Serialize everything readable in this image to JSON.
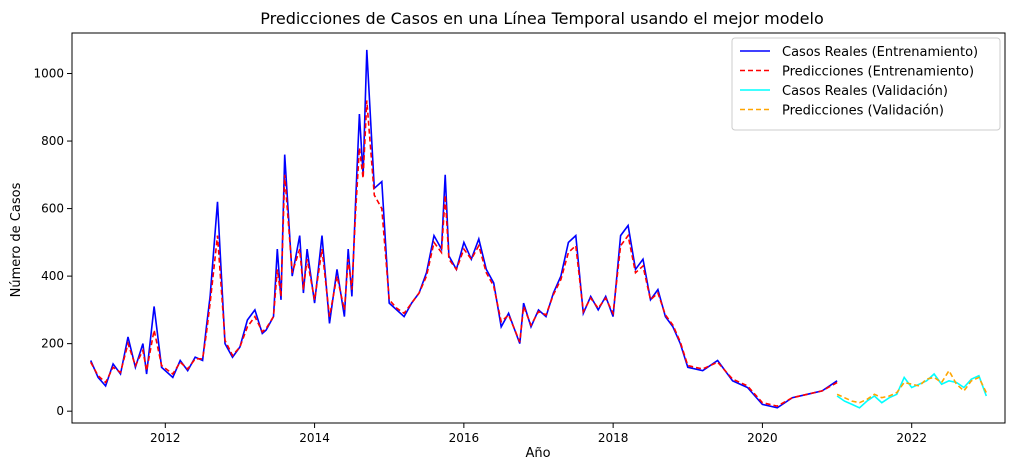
{
  "chart_data": {
    "type": "line",
    "title": "Predicciones de Casos en una Línea Temporal usando el mejor modelo",
    "xlabel": "Año",
    "ylabel": "Número de Casos",
    "xlim": [
      2010.75,
      2023.25
    ],
    "ylim": [
      -35,
      1120
    ],
    "x_ticks": [
      2012,
      2014,
      2016,
      2018,
      2020,
      2022
    ],
    "y_ticks": [
      0,
      200,
      400,
      600,
      800,
      1000
    ],
    "grid": false,
    "legend_position": "top-right",
    "series": [
      {
        "name": "Casos Reales (Entrenamiento)",
        "color": "#0000ff",
        "style": "solid",
        "x": [
          2011.0,
          2011.1,
          2011.2,
          2011.3,
          2011.4,
          2011.5,
          2011.6,
          2011.7,
          2011.75,
          2011.85,
          2011.95,
          2012.1,
          2012.2,
          2012.3,
          2012.4,
          2012.5,
          2012.55,
          2012.6,
          2012.7,
          2012.8,
          2012.9,
          2013.0,
          2013.1,
          2013.2,
          2013.3,
          2013.35,
          2013.45,
          2013.5,
          2013.55,
          2013.6,
          2013.7,
          2013.8,
          2013.85,
          2013.9,
          2014.0,
          2014.1,
          2014.2,
          2014.3,
          2014.4,
          2014.45,
          2014.5,
          2014.55,
          2014.6,
          2014.65,
          2014.7,
          2014.8,
          2014.9,
          2015.0,
          2015.1,
          2015.2,
          2015.3,
          2015.4,
          2015.5,
          2015.6,
          2015.7,
          2015.75,
          2015.8,
          2015.9,
          2016.0,
          2016.1,
          2016.2,
          2016.3,
          2016.4,
          2016.5,
          2016.6,
          2016.75,
          2016.8,
          2016.9,
          2017.0,
          2017.1,
          2017.2,
          2017.3,
          2017.4,
          2017.5,
          2017.6,
          2017.7,
          2017.8,
          2017.9,
          2018.0,
          2018.1,
          2018.2,
          2018.3,
          2018.4,
          2018.5,
          2018.6,
          2018.7,
          2018.8,
          2018.9,
          2019.0,
          2019.2,
          2019.4,
          2019.6,
          2019.8,
          2020.0,
          2020.2,
          2020.4,
          2020.6,
          2020.8,
          2021.0
        ],
        "values": [
          150,
          100,
          75,
          140,
          110,
          220,
          130,
          200,
          110,
          310,
          130,
          100,
          150,
          120,
          160,
          150,
          250,
          340,
          620,
          200,
          160,
          190,
          270,
          300,
          230,
          240,
          280,
          480,
          330,
          760,
          400,
          520,
          350,
          480,
          320,
          520,
          260,
          420,
          280,
          480,
          340,
          620,
          880,
          700,
          1070,
          660,
          680,
          320,
          300,
          280,
          320,
          350,
          410,
          520,
          480,
          700,
          460,
          420,
          500,
          450,
          510,
          420,
          380,
          250,
          290,
          200,
          320,
          250,
          300,
          280,
          350,
          400,
          500,
          520,
          290,
          340,
          300,
          340,
          280,
          520,
          550,
          420,
          450,
          330,
          360,
          280,
          250,
          200,
          130,
          120,
          150,
          90,
          70,
          20,
          10,
          40,
          50,
          60,
          90
        ]
      },
      {
        "name": "Predicciones (Entrenamiento)",
        "color": "#ff0000",
        "style": "dashed",
        "x": [
          2011.0,
          2011.1,
          2011.2,
          2011.3,
          2011.4,
          2011.5,
          2011.6,
          2011.7,
          2011.75,
          2011.85,
          2011.95,
          2012.1,
          2012.2,
          2012.3,
          2012.4,
          2012.5,
          2012.55,
          2012.6,
          2012.7,
          2012.8,
          2012.9,
          2013.0,
          2013.1,
          2013.2,
          2013.3,
          2013.35,
          2013.45,
          2013.5,
          2013.55,
          2013.6,
          2013.7,
          2013.8,
          2013.85,
          2013.9,
          2014.0,
          2014.1,
          2014.2,
          2014.3,
          2014.4,
          2014.45,
          2014.5,
          2014.55,
          2014.6,
          2014.65,
          2014.7,
          2014.8,
          2014.9,
          2015.0,
          2015.1,
          2015.2,
          2015.3,
          2015.4,
          2015.5,
          2015.6,
          2015.7,
          2015.75,
          2015.8,
          2015.9,
          2016.0,
          2016.1,
          2016.2,
          2016.3,
          2016.4,
          2016.5,
          2016.6,
          2016.75,
          2016.8,
          2016.9,
          2017.0,
          2017.1,
          2017.2,
          2017.3,
          2017.4,
          2017.5,
          2017.6,
          2017.7,
          2017.8,
          2017.9,
          2018.0,
          2018.1,
          2018.2,
          2018.3,
          2018.4,
          2018.5,
          2018.6,
          2018.7,
          2018.8,
          2018.9,
          2019.0,
          2019.2,
          2019.4,
          2019.6,
          2019.8,
          2020.0,
          2020.2,
          2020.4,
          2020.6,
          2020.8,
          2021.0
        ],
        "values": [
          145,
          105,
          85,
          130,
          115,
          200,
          135,
          180,
          120,
          240,
          135,
          110,
          145,
          125,
          155,
          155,
          230,
          320,
          520,
          210,
          165,
          190,
          250,
          280,
          235,
          245,
          280,
          420,
          340,
          700,
          410,
          480,
          360,
          450,
          330,
          480,
          280,
          400,
          300,
          450,
          360,
          590,
          780,
          690,
          920,
          640,
          600,
          330,
          305,
          290,
          320,
          350,
          400,
          500,
          470,
          640,
          450,
          420,
          480,
          450,
          490,
          410,
          370,
          265,
          285,
          205,
          310,
          255,
          295,
          285,
          345,
          390,
          470,
          490,
          295,
          335,
          305,
          335,
          290,
          490,
          520,
          410,
          430,
          330,
          350,
          285,
          255,
          205,
          135,
          125,
          145,
          95,
          75,
          25,
          15,
          40,
          50,
          60,
          85
        ]
      },
      {
        "name": "Casos Reales (Validación)",
        "color": "#00ffff",
        "style": "solid",
        "x": [
          2021.0,
          2021.1,
          2021.2,
          2021.3,
          2021.4,
          2021.5,
          2021.6,
          2021.7,
          2021.8,
          2021.9,
          2022.0,
          2022.1,
          2022.2,
          2022.3,
          2022.4,
          2022.5,
          2022.6,
          2022.7,
          2022.8,
          2022.9,
          2023.0
        ],
        "values": [
          45,
          30,
          20,
          10,
          30,
          45,
          25,
          40,
          50,
          100,
          70,
          80,
          90,
          110,
          80,
          90,
          85,
          70,
          95,
          105,
          45
        ]
      },
      {
        "name": "Predicciones (Validación)",
        "color": "#ffa500",
        "style": "dashed",
        "x": [
          2021.0,
          2021.1,
          2021.2,
          2021.3,
          2021.4,
          2021.5,
          2021.6,
          2021.7,
          2021.8,
          2021.9,
          2022.0,
          2022.1,
          2022.2,
          2022.3,
          2022.4,
          2022.5,
          2022.6,
          2022.7,
          2022.8,
          2022.9,
          2023.0
        ],
        "values": [
          50,
          40,
          30,
          25,
          35,
          50,
          40,
          45,
          55,
          85,
          80,
          75,
          95,
          100,
          85,
          120,
          80,
          60,
          90,
          100,
          55
        ]
      }
    ]
  }
}
